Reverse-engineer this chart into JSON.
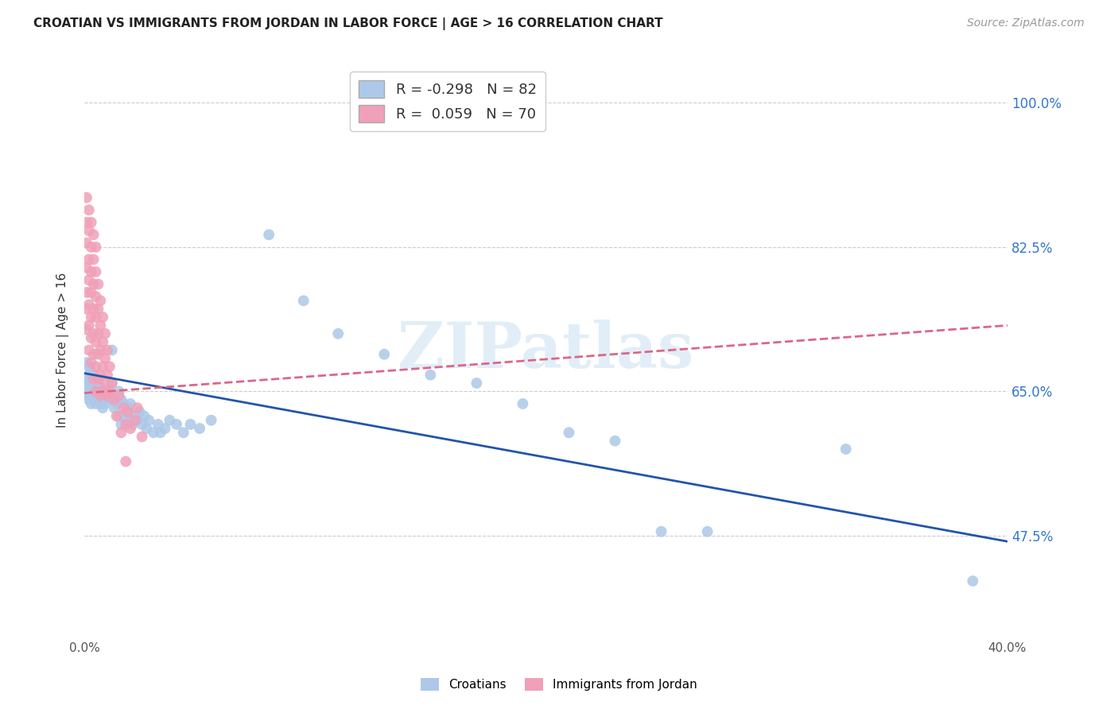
{
  "title": "CROATIAN VS IMMIGRANTS FROM JORDAN IN LABOR FORCE | AGE > 16 CORRELATION CHART",
  "source": "Source: ZipAtlas.com",
  "ylabel": "In Labor Force | Age > 16",
  "xlim": [
    0.0,
    0.4
  ],
  "ylim": [
    0.35,
    1.05
  ],
  "yticks": [
    0.475,
    0.65,
    0.825,
    1.0
  ],
  "ytick_labels": [
    "47.5%",
    "65.0%",
    "82.5%",
    "100.0%"
  ],
  "xticks": [
    0.0,
    0.1,
    0.2,
    0.3,
    0.4
  ],
  "xtick_labels": [
    "0.0%",
    "",
    "",
    "",
    "40.0%"
  ],
  "bg_color": "#ffffff",
  "watermark": "ZIPatlas",
  "croatian_color": "#adc8e8",
  "jordan_color": "#f0a0b8",
  "croatian_line_color": "#2255aa",
  "jordan_line_color": "#dd6688",
  "croatian_R": -0.298,
  "croatian_N": 82,
  "jordan_R": 0.059,
  "jordan_N": 70,
  "croatian_line": [
    0.0,
    0.672,
    0.4,
    0.468
  ],
  "jordan_line": [
    0.0,
    0.648,
    0.4,
    0.73
  ],
  "croatian_scatter": [
    [
      0.001,
      0.685
    ],
    [
      0.001,
      0.665
    ],
    [
      0.001,
      0.645
    ],
    [
      0.001,
      0.655
    ],
    [
      0.002,
      0.67
    ],
    [
      0.002,
      0.66
    ],
    [
      0.002,
      0.65
    ],
    [
      0.002,
      0.64
    ],
    [
      0.002,
      0.68
    ],
    [
      0.003,
      0.665
    ],
    [
      0.003,
      0.655
    ],
    [
      0.003,
      0.645
    ],
    [
      0.003,
      0.635
    ],
    [
      0.003,
      0.675
    ],
    [
      0.004,
      0.66
    ],
    [
      0.004,
      0.65
    ],
    [
      0.004,
      0.64
    ],
    [
      0.004,
      0.67
    ],
    [
      0.005,
      0.655
    ],
    [
      0.005,
      0.645
    ],
    [
      0.005,
      0.635
    ],
    [
      0.005,
      0.665
    ],
    [
      0.006,
      0.65
    ],
    [
      0.006,
      0.64
    ],
    [
      0.006,
      0.66
    ],
    [
      0.007,
      0.655
    ],
    [
      0.007,
      0.645
    ],
    [
      0.007,
      0.635
    ],
    [
      0.008,
      0.65
    ],
    [
      0.008,
      0.64
    ],
    [
      0.008,
      0.63
    ],
    [
      0.009,
      0.645
    ],
    [
      0.009,
      0.635
    ],
    [
      0.01,
      0.65
    ],
    [
      0.01,
      0.64
    ],
    [
      0.011,
      0.645
    ],
    [
      0.012,
      0.7
    ],
    [
      0.012,
      0.66
    ],
    [
      0.013,
      0.64
    ],
    [
      0.013,
      0.63
    ],
    [
      0.014,
      0.635
    ],
    [
      0.015,
      0.65
    ],
    [
      0.015,
      0.62
    ],
    [
      0.016,
      0.64
    ],
    [
      0.016,
      0.61
    ],
    [
      0.017,
      0.635
    ],
    [
      0.018,
      0.625
    ],
    [
      0.018,
      0.615
    ],
    [
      0.019,
      0.63
    ],
    [
      0.02,
      0.635
    ],
    [
      0.02,
      0.615
    ],
    [
      0.021,
      0.61
    ],
    [
      0.022,
      0.62
    ],
    [
      0.023,
      0.615
    ],
    [
      0.024,
      0.625
    ],
    [
      0.025,
      0.61
    ],
    [
      0.026,
      0.62
    ],
    [
      0.027,
      0.605
    ],
    [
      0.028,
      0.615
    ],
    [
      0.03,
      0.6
    ],
    [
      0.032,
      0.61
    ],
    [
      0.033,
      0.6
    ],
    [
      0.035,
      0.605
    ],
    [
      0.037,
      0.615
    ],
    [
      0.04,
      0.61
    ],
    [
      0.043,
      0.6
    ],
    [
      0.046,
      0.61
    ],
    [
      0.05,
      0.605
    ],
    [
      0.055,
      0.615
    ],
    [
      0.08,
      0.84
    ],
    [
      0.095,
      0.76
    ],
    [
      0.11,
      0.72
    ],
    [
      0.13,
      0.695
    ],
    [
      0.15,
      0.67
    ],
    [
      0.17,
      0.66
    ],
    [
      0.19,
      0.635
    ],
    [
      0.21,
      0.6
    ],
    [
      0.23,
      0.59
    ],
    [
      0.25,
      0.48
    ],
    [
      0.27,
      0.48
    ],
    [
      0.33,
      0.58
    ],
    [
      0.385,
      0.42
    ]
  ],
  "jordan_scatter": [
    [
      0.001,
      0.885
    ],
    [
      0.001,
      0.855
    ],
    [
      0.001,
      0.83
    ],
    [
      0.001,
      0.8
    ],
    [
      0.001,
      0.77
    ],
    [
      0.001,
      0.75
    ],
    [
      0.001,
      0.725
    ],
    [
      0.002,
      0.87
    ],
    [
      0.002,
      0.845
    ],
    [
      0.002,
      0.81
    ],
    [
      0.002,
      0.785
    ],
    [
      0.002,
      0.755
    ],
    [
      0.002,
      0.73
    ],
    [
      0.002,
      0.7
    ],
    [
      0.003,
      0.855
    ],
    [
      0.003,
      0.825
    ],
    [
      0.003,
      0.795
    ],
    [
      0.003,
      0.77
    ],
    [
      0.003,
      0.74
    ],
    [
      0.003,
      0.715
    ],
    [
      0.003,
      0.685
    ],
    [
      0.004,
      0.84
    ],
    [
      0.004,
      0.81
    ],
    [
      0.004,
      0.78
    ],
    [
      0.004,
      0.75
    ],
    [
      0.004,
      0.72
    ],
    [
      0.004,
      0.695
    ],
    [
      0.004,
      0.665
    ],
    [
      0.005,
      0.825
    ],
    [
      0.005,
      0.795
    ],
    [
      0.005,
      0.765
    ],
    [
      0.005,
      0.74
    ],
    [
      0.005,
      0.71
    ],
    [
      0.005,
      0.68
    ],
    [
      0.005,
      0.65
    ],
    [
      0.006,
      0.78
    ],
    [
      0.006,
      0.75
    ],
    [
      0.006,
      0.72
    ],
    [
      0.006,
      0.695
    ],
    [
      0.006,
      0.665
    ],
    [
      0.007,
      0.76
    ],
    [
      0.007,
      0.73
    ],
    [
      0.007,
      0.7
    ],
    [
      0.007,
      0.67
    ],
    [
      0.007,
      0.645
    ],
    [
      0.008,
      0.74
    ],
    [
      0.008,
      0.71
    ],
    [
      0.008,
      0.68
    ],
    [
      0.008,
      0.65
    ],
    [
      0.009,
      0.72
    ],
    [
      0.009,
      0.69
    ],
    [
      0.009,
      0.66
    ],
    [
      0.01,
      0.7
    ],
    [
      0.01,
      0.67
    ],
    [
      0.01,
      0.645
    ],
    [
      0.011,
      0.68
    ],
    [
      0.011,
      0.65
    ],
    [
      0.012,
      0.66
    ],
    [
      0.013,
      0.64
    ],
    [
      0.014,
      0.62
    ],
    [
      0.015,
      0.645
    ],
    [
      0.016,
      0.6
    ],
    [
      0.017,
      0.63
    ],
    [
      0.018,
      0.61
    ],
    [
      0.019,
      0.625
    ],
    [
      0.02,
      0.605
    ],
    [
      0.022,
      0.615
    ],
    [
      0.025,
      0.595
    ],
    [
      0.018,
      0.565
    ],
    [
      0.023,
      0.63
    ]
  ]
}
